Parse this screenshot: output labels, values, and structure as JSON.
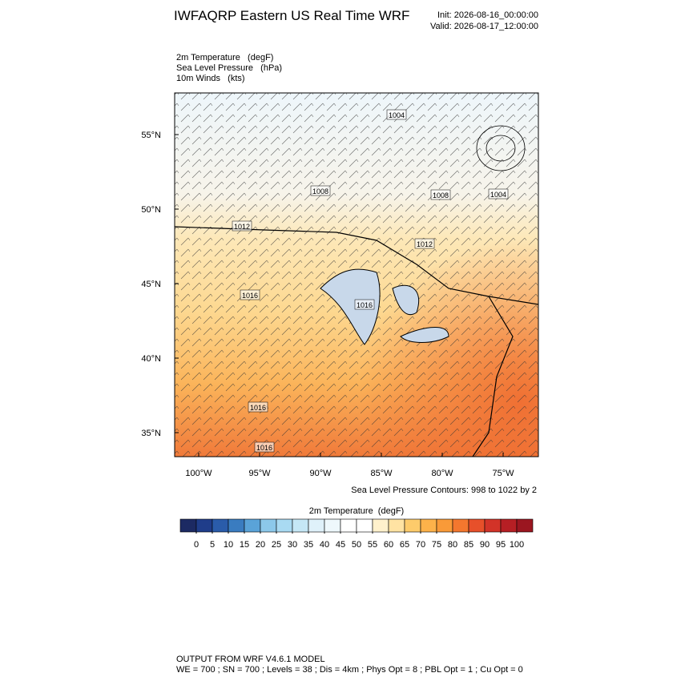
{
  "header": {
    "title": "IWFAQRP Eastern US Real Time WRF",
    "init": "Init: 2026-08-16_00:00:00",
    "valid": "Valid: 2026-08-17_12:00:00"
  },
  "fields": [
    "2m Temperature   (degF)",
    "Sea Level Pressure   (hPa)",
    "10m Winds   (kts)"
  ],
  "map": {
    "lon_ticks": [
      {
        "value": -100,
        "label": "100°W"
      },
      {
        "value": -95,
        "label": "95°W"
      },
      {
        "value": -90,
        "label": "90°W"
      },
      {
        "value": -85,
        "label": "85°W"
      },
      {
        "value": -80,
        "label": "80°W"
      },
      {
        "value": -75,
        "label": "75°W"
      }
    ],
    "lat_ticks": [
      {
        "value": 55,
        "label": "55°N"
      },
      {
        "value": 50,
        "label": "50°N"
      },
      {
        "value": 45,
        "label": "45°N"
      },
      {
        "value": 40,
        "label": "40°N"
      },
      {
        "value": 35,
        "label": "35°N"
      }
    ],
    "contour_labels": [
      1004,
      1008,
      1008,
      1004,
      1012,
      1012,
      1016,
      1016,
      1016,
      1016
    ],
    "contour_note": "Sea Level Pressure Contours: 998 to 1022 by 2"
  },
  "colorbar": {
    "title": "2m Temperature  (degF)",
    "levels": [
      0,
      5,
      10,
      15,
      20,
      25,
      30,
      35,
      40,
      45,
      50,
      55,
      60,
      65,
      70,
      75,
      80,
      85,
      90,
      95,
      100
    ],
    "colors": [
      "#1c2a63",
      "#1f3d8a",
      "#2a5caa",
      "#3a7cc0",
      "#5aa3d8",
      "#8cc8ea",
      "#a9daf2",
      "#c5e7f6",
      "#dff1fa",
      "#eef8fc",
      "#ffffff",
      "#ffffff",
      "#fff1cc",
      "#ffe3a3",
      "#fdcb6b",
      "#fdb24a",
      "#f99a38",
      "#f4772e",
      "#e7502a",
      "#d23328",
      "#b61f24",
      "#9b1620"
    ]
  },
  "footer": {
    "line1": "OUTPUT FROM WRF V4.6.1 MODEL",
    "line2": "WE = 700 ; SN = 700 ; Levels = 38 ; Dis = 4km ; Phys Opt = 8 ; PBL Opt = 1 ; Cu Opt = 0"
  }
}
